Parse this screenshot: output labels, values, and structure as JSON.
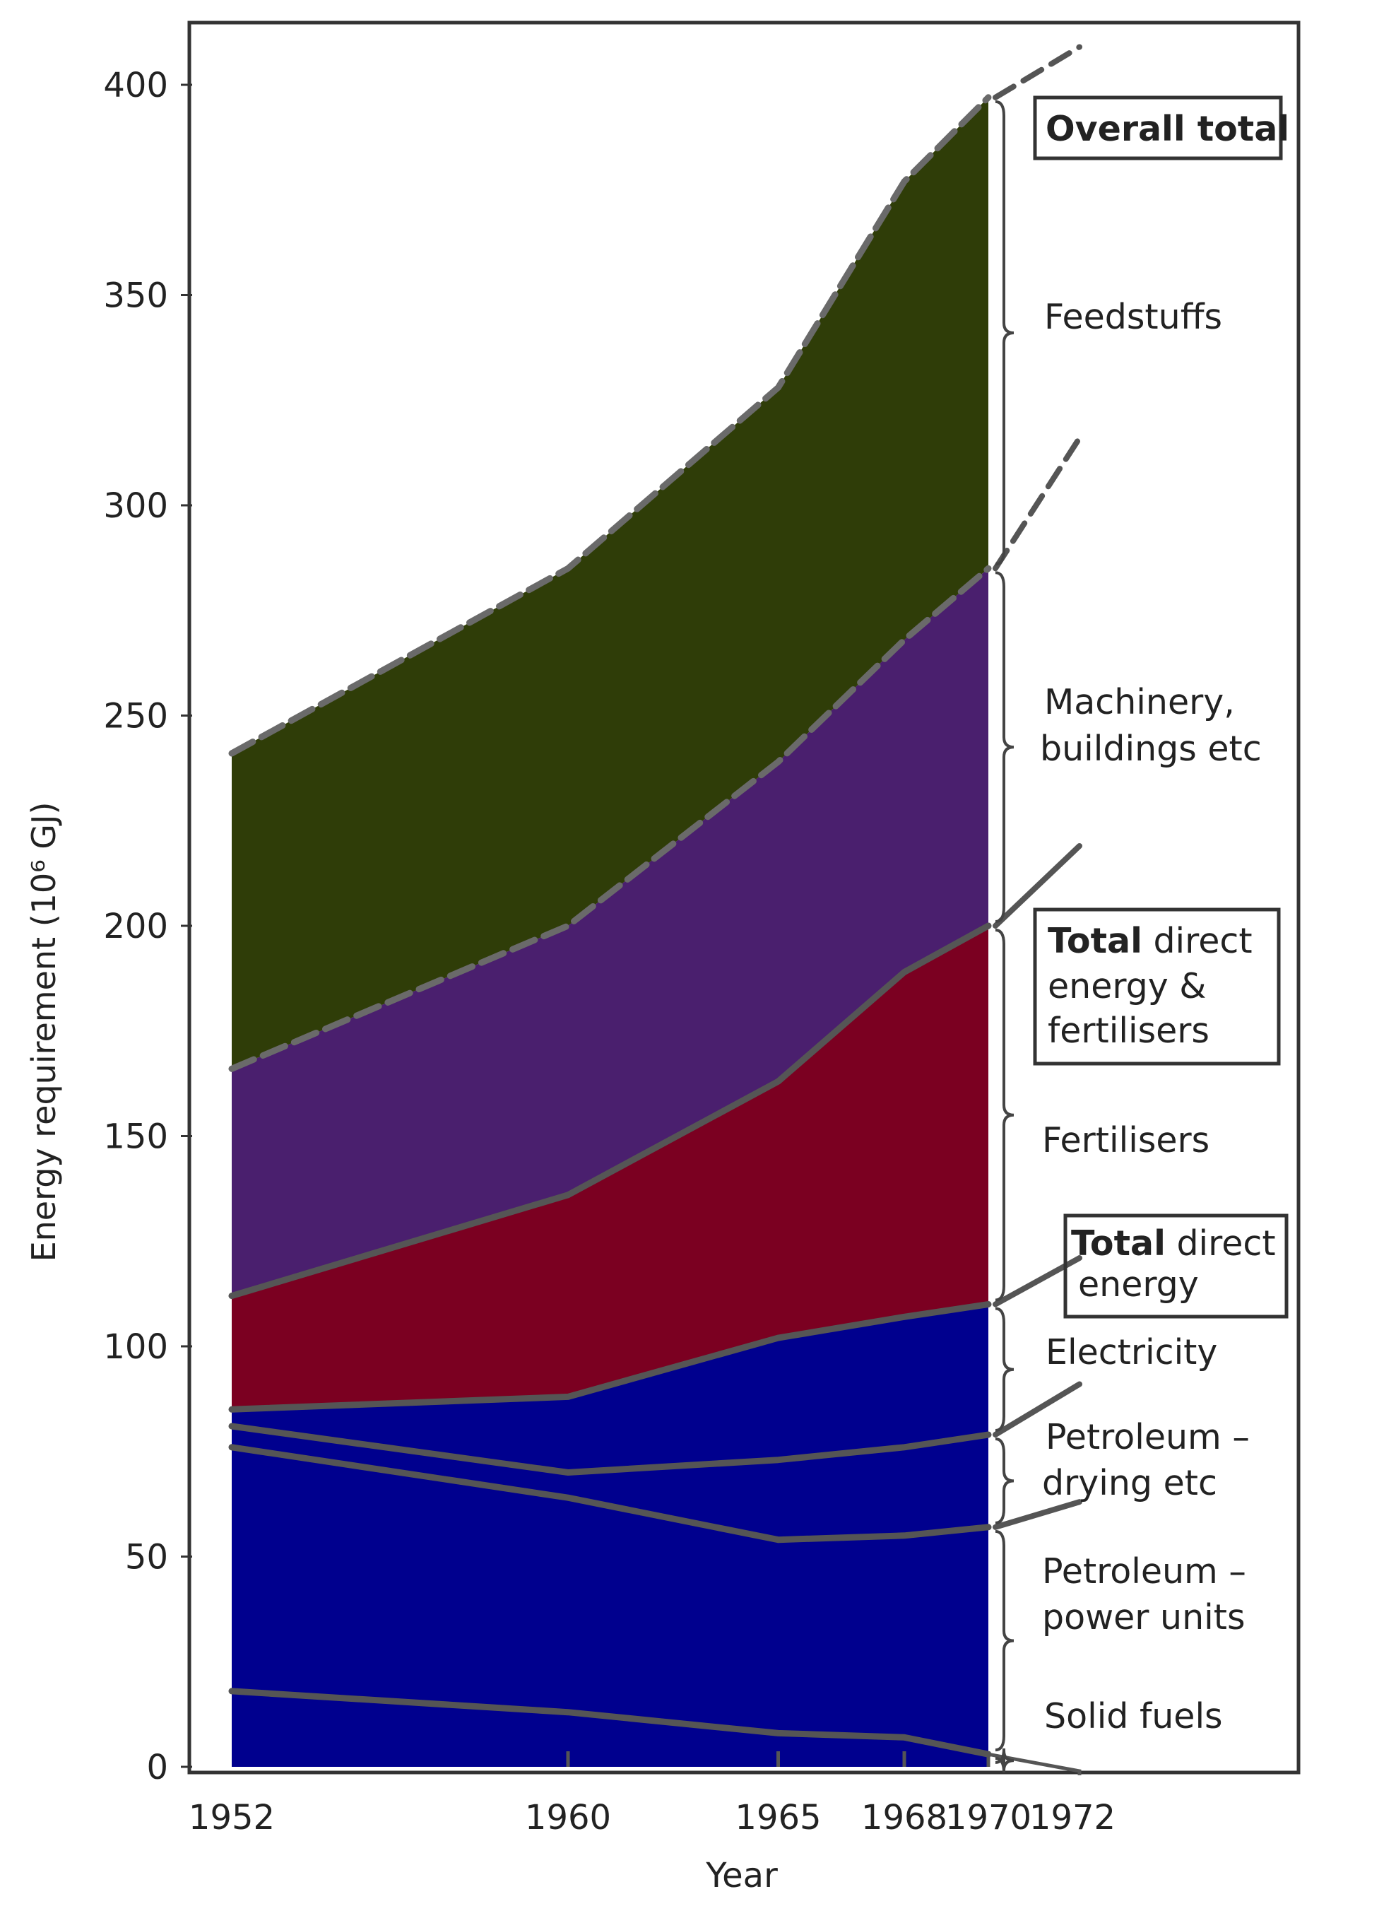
{
  "chart_data": {
    "type": "area",
    "ylabel": "Energy requirement (10⁶ GJ)",
    "xlabel": "Year",
    "ylim": [
      0,
      420
    ],
    "y_ticks": [
      0,
      50,
      100,
      150,
      200,
      250,
      300,
      350,
      400
    ],
    "x_ticks": [
      "1952",
      "1960",
      "1965",
      "1968",
      "1970",
      "1972"
    ],
    "x": [
      1952,
      1960,
      1965,
      1968,
      1970
    ],
    "boundaries": {
      "solid_fuels": [
        18,
        13,
        8,
        7,
        3
      ],
      "petroleum_power_units": [
        76,
        64,
        54,
        55,
        57
      ],
      "petroleum_drying": [
        81,
        70,
        73,
        76,
        79
      ],
      "total_direct_energy": [
        85,
        88,
        102,
        107,
        110
      ],
      "total_direct_energy_fertilisers": [
        112,
        136,
        163,
        189,
        200
      ],
      "machinery_buildings": [
        166,
        200,
        239,
        268,
        285
      ],
      "overall_total": [
        241,
        285,
        328,
        377,
        397
      ]
    },
    "extrapolation_1972": {
      "petroleum_power_units": 63,
      "petroleum_drying": 91,
      "total_direct_energy": 121,
      "total_direct_energy_fertilisers": 219,
      "machinery_buildings": 316,
      "overall_total": 409
    },
    "series": [
      {
        "name": "Solid fuels",
        "color": "#00008e"
      },
      {
        "name": "Petroleum – power units",
        "color": "#00008e"
      },
      {
        "name": "Petroleum – drying etc",
        "color": "#00008e"
      },
      {
        "name": "Electricity",
        "color": "#00008e"
      },
      {
        "name": "Fertilisers",
        "color": "#7b0021"
      },
      {
        "name": "Machinery, buildings etc",
        "color": "#4a1f6e"
      },
      {
        "name": "Feedstuffs",
        "color": "#2f3d08"
      }
    ],
    "annotations": {
      "overall_total": "Overall total",
      "feedstuffs": "Feedstuffs",
      "machinery_1": "Machinery,",
      "machinery_2": "buildings etc",
      "tdef_bold": "Total",
      "tdef_1": "direct",
      "tdef_2": "energy &",
      "tdef_3": "fertilisers",
      "fertilisers": "Fertilisers",
      "tde_bold": "Total",
      "tde_1": "direct",
      "tde_2": "energy",
      "electricity": "Electricity",
      "pd_1": "Petroleum –",
      "pd_2": "drying etc",
      "pp_1": "Petroleum –",
      "pp_2": "power units",
      "solid_fuels": "Solid fuels"
    },
    "grid": false,
    "legend": "right-side labels"
  }
}
